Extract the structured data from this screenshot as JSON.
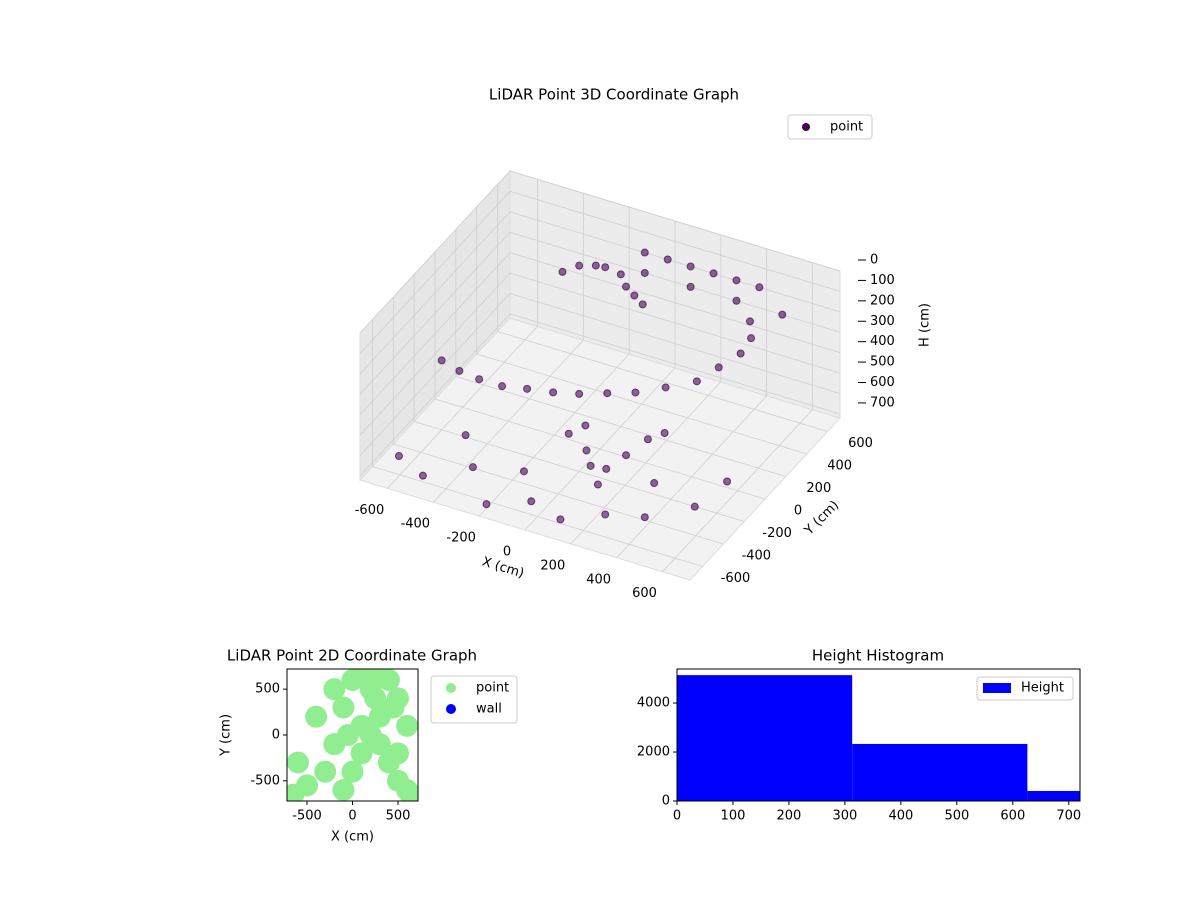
{
  "chart_data": [
    {
      "type": "scatter3d",
      "title": "LiDAR Point 3D Coordinate Graph",
      "xlabel": "X (cm)",
      "ylabel": "Y (cm)",
      "zlabel": "H (cm)",
      "xlim": [
        -720,
        720
      ],
      "ylim": [
        -720,
        720
      ],
      "zlim": [
        0,
        720
      ],
      "zinverted": true,
      "grid": true,
      "legend": "upper right",
      "xticks": [
        -600,
        -400,
        -200,
        0,
        200,
        400,
        600
      ],
      "yticks": [
        -600,
        -400,
        -200,
        0,
        200,
        400,
        600
      ],
      "zticks": [
        0,
        100,
        200,
        300,
        400,
        500,
        600,
        700
      ],
      "series": [
        {
          "name": "point",
          "color": "#440154",
          "x": [
            -600,
            -500,
            -400,
            -300,
            -200,
            -100,
            0,
            100,
            200,
            300,
            400,
            450,
            500,
            500,
            450,
            -300,
            -250,
            -200,
            -150,
            -100,
            -50,
            0,
            50,
            -650,
            -500,
            -350,
            -200,
            -50,
            100,
            250,
            400,
            550,
            -450,
            -150,
            150,
            350,
            600,
            -100,
            0,
            100,
            200,
            300,
            400,
            -100,
            100,
            300,
            500,
            100,
            150,
            200,
            250,
            0,
            50,
            300,
            350
          ],
          "y": [
            -200,
            -250,
            -280,
            -280,
            -260,
            -230,
            -200,
            -150,
            -100,
            -30,
            50,
            150,
            250,
            350,
            450,
            300,
            350,
            400,
            380,
            420,
            360,
            330,
            300,
            -500,
            -600,
            -450,
            -650,
            -550,
            -600,
            -500,
            -450,
            -300,
            -300,
            -400,
            -350,
            -250,
            -100,
            650,
            650,
            650,
            650,
            650,
            650,
            650,
            650,
            650,
            650,
            -350,
            -420,
            -380,
            -300,
            -300,
            -250,
            -200,
            -150
          ],
          "z": [
            380,
            370,
            360,
            360,
            350,
            350,
            340,
            330,
            320,
            300,
            280,
            250,
            220,
            200,
            190,
            120,
            100,
            110,
            90,
            130,
            140,
            150,
            160,
            700,
            690,
            680,
            700,
            690,
            700,
            680,
            670,
            650,
            640,
            660,
            650,
            630,
            620,
            150,
            150,
            150,
            150,
            150,
            150,
            250,
            250,
            250,
            250,
            500,
            520,
            540,
            500,
            480,
            450,
            460,
            440
          ]
        }
      ]
    },
    {
      "type": "scatter",
      "title": "LiDAR Point 2D Coordinate Graph",
      "xlabel": "X (cm)",
      "ylabel": "Y (cm)",
      "xlim": [
        -720,
        720
      ],
      "ylim": [
        -720,
        720
      ],
      "xticks": [
        -500,
        0,
        500
      ],
      "yticks": [
        -500,
        0,
        500
      ],
      "legend": "outside right",
      "series": [
        {
          "name": "point",
          "color": "#90ee90",
          "x": [
            -650,
            -600,
            -500,
            -400,
            -300,
            -200,
            -100,
            0,
            100,
            200,
            300,
            400,
            500,
            600,
            650,
            -100,
            0,
            100,
            200,
            300,
            400,
            500,
            600,
            -200,
            100,
            300,
            500,
            -50,
            250,
            450
          ],
          "y": [
            -650,
            -300,
            -550,
            200,
            -400,
            -100,
            300,
            600,
            650,
            500,
            700,
            600,
            400,
            100,
            -700,
            -600,
            -400,
            -200,
            0,
            200,
            -300,
            -500,
            -600,
            500,
            100,
            -100,
            -200,
            0,
            400,
            300
          ]
        },
        {
          "name": "wall",
          "color": "#0000ff",
          "x": [],
          "y": []
        }
      ]
    },
    {
      "type": "histogram",
      "title": "Height Histogram",
      "bins": [
        0,
        313,
        626,
        939
      ],
      "xlim": [
        0,
        720
      ],
      "ylim": [
        0,
        5390
      ],
      "xticks": [
        0,
        100,
        200,
        300,
        400,
        500,
        600,
        700
      ],
      "yticks": [
        0,
        2000,
        4000
      ],
      "legend": "upper right",
      "series": [
        {
          "name": "Height",
          "color": "#0000ff",
          "values": [
            5140,
            2330,
            410
          ]
        }
      ]
    }
  ]
}
